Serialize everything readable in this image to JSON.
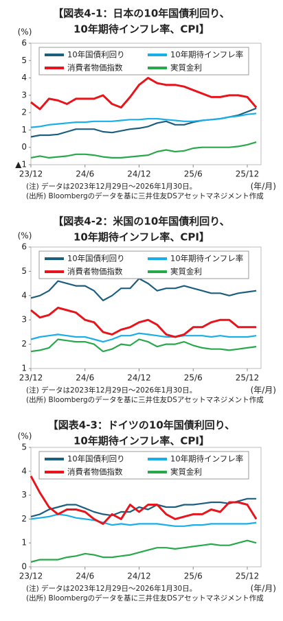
{
  "chart_data": [
    {
      "type": "line",
      "title": [
        "【図表4-1：日本の10年国債利回り、",
        "10年期待インフレ率、CPI】"
      ],
      "y_unit": "(%)",
      "x_unit": "(年/月)",
      "notes": [
        "(注) データは2023年12月29日～2026年1月30日。",
        "(出所) Bloombergのデータを基に三井住友DSアセットマネジメント作成"
      ],
      "categories": [
        "23/12",
        null,
        null,
        null,
        null,
        null,
        "24/6",
        null,
        null,
        null,
        null,
        null,
        "24/12",
        null,
        null,
        null,
        null,
        null,
        "25/6",
        null,
        null,
        null,
        null,
        null,
        "25/12",
        null
      ],
      "ylim": [
        -1,
        6
      ],
      "yticks": [
        {
          "value": -1,
          "label": "▲1"
        },
        0,
        1,
        2,
        3,
        4,
        5,
        6
      ],
      "legend": "upper left",
      "series": [
        {
          "name": "10年国債利回り",
          "color": "#1b5e7e",
          "values": [
            0.6,
            0.7,
            0.7,
            0.75,
            0.9,
            1.05,
            1.05,
            1.05,
            0.9,
            0.85,
            0.95,
            1.05,
            1.1,
            1.2,
            1.4,
            1.5,
            1.3,
            1.3,
            1.45,
            1.55,
            1.6,
            1.65,
            1.75,
            1.85,
            2.05,
            2.25
          ]
        },
        {
          "name": "10年期待インフレ率",
          "color": "#19aee8",
          "values": [
            1.15,
            1.2,
            1.3,
            1.35,
            1.4,
            1.45,
            1.45,
            1.5,
            1.5,
            1.5,
            1.55,
            1.6,
            1.6,
            1.65,
            1.65,
            1.6,
            1.55,
            1.5,
            1.5,
            1.55,
            1.6,
            1.65,
            1.75,
            1.8,
            1.9,
            1.95
          ]
        },
        {
          "name": "消費者物価指数",
          "color": "#e8141b",
          "values": [
            2.6,
            2.2,
            2.8,
            2.7,
            2.5,
            2.8,
            2.8,
            2.8,
            3.0,
            2.5,
            2.3,
            2.9,
            3.6,
            4.0,
            3.7,
            3.6,
            3.6,
            3.5,
            3.3,
            3.1,
            2.9,
            2.9,
            3.0,
            3.0,
            2.9,
            2.3
          ]
        },
        {
          "name": "実質金利",
          "color": "#27a84a",
          "values": [
            -0.6,
            -0.5,
            -0.6,
            -0.55,
            -0.5,
            -0.4,
            -0.4,
            -0.45,
            -0.55,
            -0.6,
            -0.6,
            -0.55,
            -0.5,
            -0.45,
            -0.25,
            -0.15,
            -0.25,
            -0.2,
            -0.05,
            0.0,
            0.0,
            0.0,
            0.0,
            0.05,
            0.15,
            0.3
          ]
        }
      ]
    },
    {
      "type": "line",
      "title": [
        "【図表4-2：米国の10年国債利回り、",
        "10年期待インフレ率、CPI】"
      ],
      "y_unit": "(%)",
      "x_unit": "(年/月)",
      "notes": [
        "(注) データは2023年12月29日～2026年1月30日。",
        "(出所) Bloombergのデータを基に三井住友DSアセットマネジメント作成"
      ],
      "categories": [
        "23/12",
        null,
        null,
        null,
        null,
        null,
        "24/6",
        null,
        null,
        null,
        null,
        null,
        "24/12",
        null,
        null,
        null,
        null,
        null,
        "25/6",
        null,
        null,
        null,
        null,
        null,
        "25/12",
        null
      ],
      "ylim": [
        1,
        6
      ],
      "yticks": [
        1,
        2,
        3,
        4,
        5,
        6
      ],
      "legend": "upper left",
      "series": [
        {
          "name": "10年国債利回り",
          "color": "#1b5e7e",
          "values": [
            3.9,
            4.0,
            4.2,
            4.6,
            4.5,
            4.4,
            4.4,
            4.2,
            3.8,
            4.0,
            4.3,
            4.3,
            4.7,
            4.5,
            4.2,
            4.3,
            4.3,
            4.4,
            4.3,
            4.2,
            4.1,
            4.1,
            4.0,
            4.1,
            4.15,
            4.2
          ]
        },
        {
          "name": "10年期待インフレ率",
          "color": "#19aee8",
          "values": [
            2.2,
            2.3,
            2.35,
            2.4,
            2.35,
            2.3,
            2.3,
            2.2,
            2.1,
            2.2,
            2.35,
            2.35,
            2.45,
            2.4,
            2.35,
            2.3,
            2.3,
            2.35,
            2.35,
            2.35,
            2.3,
            2.35,
            2.3,
            2.3,
            2.3,
            2.35
          ]
        },
        {
          "name": "消費者物価指数",
          "color": "#e8141b",
          "values": [
            3.4,
            3.1,
            3.2,
            3.5,
            3.4,
            3.3,
            3.0,
            2.9,
            2.5,
            2.4,
            2.6,
            2.7,
            2.9,
            3.0,
            2.8,
            2.4,
            2.3,
            2.4,
            2.7,
            2.7,
            2.9,
            3.0,
            3.0,
            2.7,
            2.7,
            2.7
          ]
        },
        {
          "name": "実質金利",
          "color": "#27a84a",
          "values": [
            1.7,
            1.75,
            1.85,
            2.2,
            2.15,
            2.1,
            2.1,
            2.0,
            1.7,
            1.8,
            2.0,
            1.95,
            2.2,
            2.1,
            1.9,
            2.0,
            2.0,
            2.1,
            1.95,
            1.85,
            1.8,
            1.8,
            1.75,
            1.8,
            1.85,
            1.9
          ]
        }
      ]
    },
    {
      "type": "line",
      "title": [
        "【図表4-3：ドイツの10年国債利回り、",
        "10年期待インフレ率、CPI】"
      ],
      "y_unit": "(%)",
      "x_unit": "(年/月)",
      "notes": [
        "(注) データは2023年12月29日～2026年1月30日。",
        "(出所) Bloombergのデータを基に三井住友DSアセットマネジメント作成"
      ],
      "categories": [
        "23/12",
        null,
        null,
        null,
        null,
        null,
        "24/6",
        null,
        null,
        null,
        null,
        null,
        "24/12",
        null,
        null,
        null,
        null,
        null,
        "25/6",
        null,
        null,
        null,
        null,
        null,
        "25/12",
        null
      ],
      "ylim": [
        0,
        5
      ],
      "yticks": [
        0,
        1,
        2,
        3,
        4,
        5
      ],
      "legend": "upper left",
      "series": [
        {
          "name": "10年国債利回り",
          "color": "#1b5e7e",
          "values": [
            2.1,
            2.2,
            2.4,
            2.5,
            2.6,
            2.6,
            2.45,
            2.3,
            2.2,
            2.15,
            2.3,
            2.3,
            2.5,
            2.4,
            2.6,
            2.5,
            2.5,
            2.6,
            2.6,
            2.65,
            2.7,
            2.7,
            2.65,
            2.75,
            2.85,
            2.85
          ]
        },
        {
          "name": "10年期待インフレ率",
          "color": "#19aee8",
          "values": [
            2.0,
            2.05,
            2.1,
            2.2,
            2.15,
            2.05,
            2.0,
            1.95,
            1.85,
            1.75,
            1.8,
            1.75,
            1.8,
            1.8,
            1.8,
            1.75,
            1.7,
            1.7,
            1.75,
            1.75,
            1.8,
            1.8,
            1.8,
            1.8,
            1.8,
            1.85
          ]
        },
        {
          "name": "消費者物価指数",
          "color": "#e8141b",
          "values": [
            3.8,
            3.1,
            2.5,
            2.2,
            2.4,
            2.4,
            2.3,
            2.0,
            1.8,
            2.2,
            2.0,
            2.6,
            2.3,
            2.6,
            2.6,
            2.2,
            2.0,
            2.1,
            2.2,
            2.2,
            2.4,
            2.3,
            2.7,
            2.7,
            2.6,
            2.0
          ]
        },
        {
          "name": "実質金利",
          "color": "#27a84a",
          "values": [
            0.2,
            0.3,
            0.3,
            0.3,
            0.4,
            0.45,
            0.55,
            0.5,
            0.4,
            0.4,
            0.45,
            0.5,
            0.6,
            0.7,
            0.8,
            0.8,
            0.75,
            0.8,
            0.85,
            0.9,
            0.95,
            0.9,
            0.9,
            1.0,
            1.1,
            1.0
          ]
        }
      ]
    }
  ]
}
